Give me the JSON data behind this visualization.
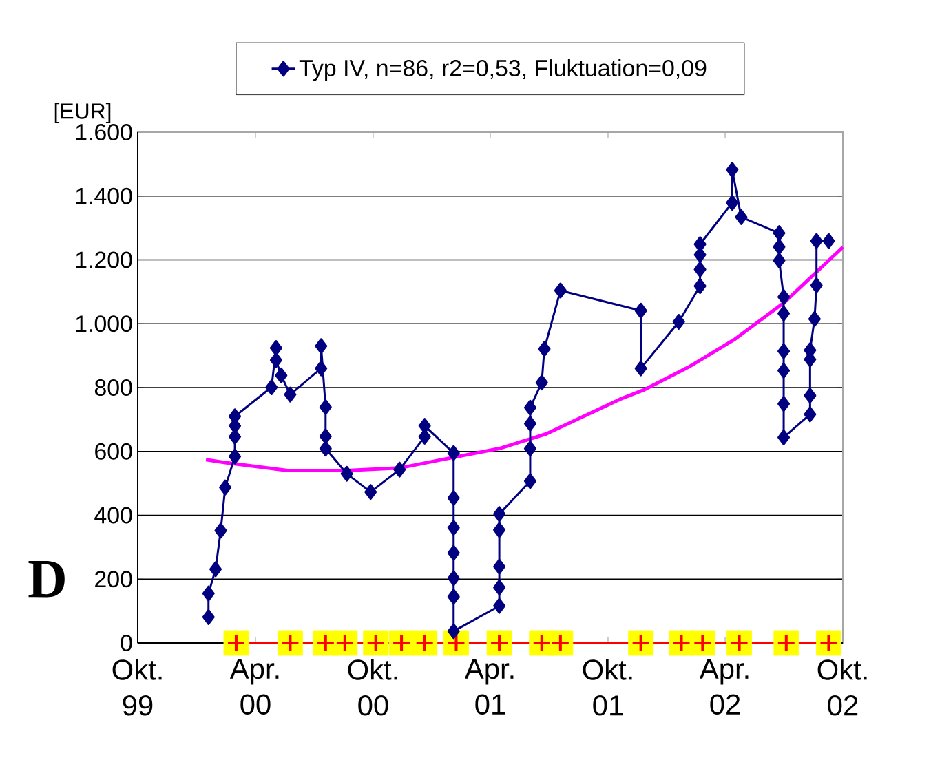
{
  "chart_data": {
    "type": "line",
    "ylabel": "[EUR]",
    "annotations": [
      "D"
    ],
    "xlim": [
      "1999-10-01",
      "2002-10-01"
    ],
    "xticks": [
      {
        "value": "1999-10-01",
        "label": "Okt. 99"
      },
      {
        "value": "2000-04-01",
        "label": "Apr. 00"
      },
      {
        "value": "2000-10-01",
        "label": "Okt. 00"
      },
      {
        "value": "2001-04-01",
        "label": "Apr. 01"
      },
      {
        "value": "2001-10-01",
        "label": "Okt. 01"
      },
      {
        "value": "2002-04-01",
        "label": "Apr. 02"
      },
      {
        "value": "2002-10-01",
        "label": "Okt. 02"
      }
    ],
    "ylim": [
      0,
      1600
    ],
    "yticks": [
      0,
      200,
      400,
      600,
      800,
      {
        "value": 1000,
        "label": "1.000"
      },
      {
        "value": 1200,
        "label": "1.200"
      },
      {
        "value": 1400,
        "label": "1.400"
      },
      {
        "value": 1600,
        "label": "1.600"
      }
    ],
    "grid": "y",
    "legend": "top",
    "series": [
      {
        "type": "scatter",
        "marker": "square",
        "color": "#ffff00",
        "x": [
          "2000-03-02",
          "2000-05-25",
          "2000-07-19",
          "2000-08-18",
          "2000-10-05",
          "2000-11-14",
          "2000-12-20",
          "2001-02-07",
          "2001-04-15",
          "2001-06-20",
          "2001-07-19",
          "2001-11-21",
          "2002-01-23",
          "2002-02-25",
          "2002-04-23",
          "2002-07-05",
          "2002-09-09"
        ],
        "values": [
          0,
          0,
          0,
          0,
          0,
          0,
          0,
          0,
          0,
          0,
          0,
          0,
          0,
          0,
          0,
          0,
          0
        ]
      },
      {
        "marker": "cross",
        "color": "#ff0000",
        "x": [
          "2000-03-02",
          "2000-05-25",
          "2000-07-19",
          "2000-08-18",
          "2000-10-05",
          "2000-11-14",
          "2000-12-20",
          "2001-02-07",
          "2001-04-15",
          "2001-06-20",
          "2001-07-19",
          "2001-11-21",
          "2002-01-23",
          "2002-02-25",
          "2002-04-23",
          "2002-07-05",
          "2002-09-09"
        ],
        "values": [
          0,
          0,
          0,
          0,
          0,
          0,
          0,
          0,
          0,
          0,
          0,
          0,
          0,
          0,
          0,
          0,
          0
        ]
      },
      {
        "marker": "none",
        "color": "#ff00ff",
        "x": [
          "2000-01-15",
          "2000-02-14",
          "2000-05-21",
          "2000-08-18",
          "2000-11-11",
          "2001-01-23",
          "2001-04-15",
          "2001-06-27",
          "2001-10-19",
          "2001-11-25",
          "2002-02-03",
          "2002-04-15",
          "2002-07-01",
          "2002-10-01"
        ],
        "values": [
          574,
          565,
          540,
          540,
          548,
          577,
          609,
          655,
          763,
          792,
          864,
          950,
          1065,
          1240
        ]
      },
      {
        "marker": "diamond",
        "color": "#000080",
        "name": "Typ IV, n=86, r2=0,53, Fluktuation=0,09",
        "x": [
          "2000-01-19",
          "2000-01-19",
          "2000-01-30",
          "2000-02-07",
          "2000-02-14",
          "2000-02-29",
          "2000-02-29",
          "2000-02-29",
          "2000-02-29",
          "2000-04-26",
          "2000-05-03",
          "2000-05-03",
          "2000-05-11",
          "2000-05-25",
          "2000-07-12",
          "2000-07-12",
          "2000-07-19",
          "2000-07-19",
          "2000-07-19",
          "2000-08-21",
          "2000-09-27",
          "2000-11-11",
          "2000-12-20",
          "2000-12-20",
          "2001-02-03",
          "2001-02-03",
          "2001-02-03",
          "2001-02-03",
          "2001-02-03",
          "2001-02-03",
          "2001-02-03",
          "2001-04-15",
          "2001-04-15",
          "2001-04-15",
          "2001-04-15",
          "2001-04-15",
          "2001-06-02",
          "2001-06-02",
          "2001-06-02",
          "2001-06-02",
          "2001-06-20",
          "2001-06-24",
          "2001-07-19",
          "2001-11-21",
          "2001-11-21",
          "2002-01-19",
          "2002-02-21",
          "2002-02-21",
          "2002-02-21",
          "2002-02-21",
          "2002-04-12",
          "2002-04-12",
          "2002-04-26",
          "2002-06-24",
          "2002-06-24",
          "2002-06-24",
          "2002-07-01",
          "2002-07-01",
          "2002-07-01",
          "2002-07-01",
          "2002-07-01",
          "2002-07-01",
          "2002-08-11",
          "2002-08-11",
          "2002-08-11",
          "2002-08-11",
          "2002-08-18",
          "2002-08-21",
          "2002-08-21",
          "2002-09-09"
        ],
        "values": [
          81,
          155,
          231,
          352,
          487,
          584,
          646,
          680,
          710,
          801,
          924,
          886,
          838,
          778,
          860,
          930,
          739,
          647,
          609,
          530,
          473,
          543,
          646,
          680,
          595,
          454,
          361,
          282,
          203,
          145,
          37,
          116,
          174,
          239,
          354,
          404,
          507,
          609,
          687,
          737,
          816,
          921,
          1104,
          1041,
          860,
          1006,
          1118,
          1170,
          1216,
          1249,
          1379,
          1482,
          1334,
          1284,
          1241,
          1198,
          1084,
          1032,
          914,
          853,
          749,
          644,
          716,
          775,
          888,
          917,
          1015,
          1120,
          1259,
          1259
        ]
      }
    ]
  }
}
